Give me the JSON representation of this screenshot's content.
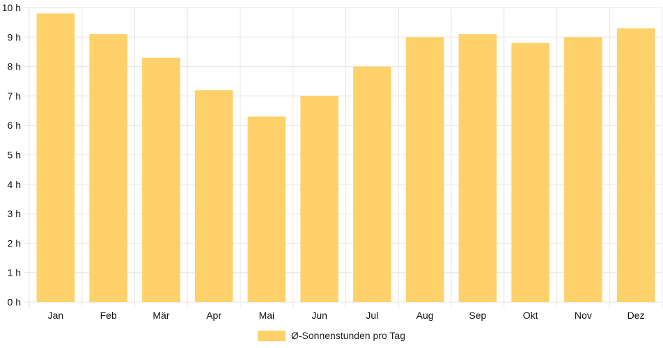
{
  "chart_data": {
    "type": "bar",
    "categories": [
      "Jan",
      "Feb",
      "Mär",
      "Apr",
      "Mai",
      "Jun",
      "Jul",
      "Aug",
      "Sep",
      "Okt",
      "Nov",
      "Dez"
    ],
    "series": [
      {
        "name": "Ø-Sonnenstunden pro Tag",
        "values": [
          9.8,
          9.1,
          8.3,
          7.2,
          6.3,
          7.0,
          8.0,
          9.0,
          9.1,
          8.8,
          9.0,
          9.3
        ],
        "color": "#fed16a"
      }
    ],
    "y_ticks": [
      "0 h",
      "1 h",
      "2 h",
      "3 h",
      "4 h",
      "5 h",
      "6 h",
      "7 h",
      "8 h",
      "9 h",
      "10 h"
    ],
    "ylim": [
      0,
      10
    ],
    "grid": true,
    "legend_position": "bottom"
  },
  "colors": {
    "grid": "#e6e6e6",
    "bar": "#fed16a"
  }
}
